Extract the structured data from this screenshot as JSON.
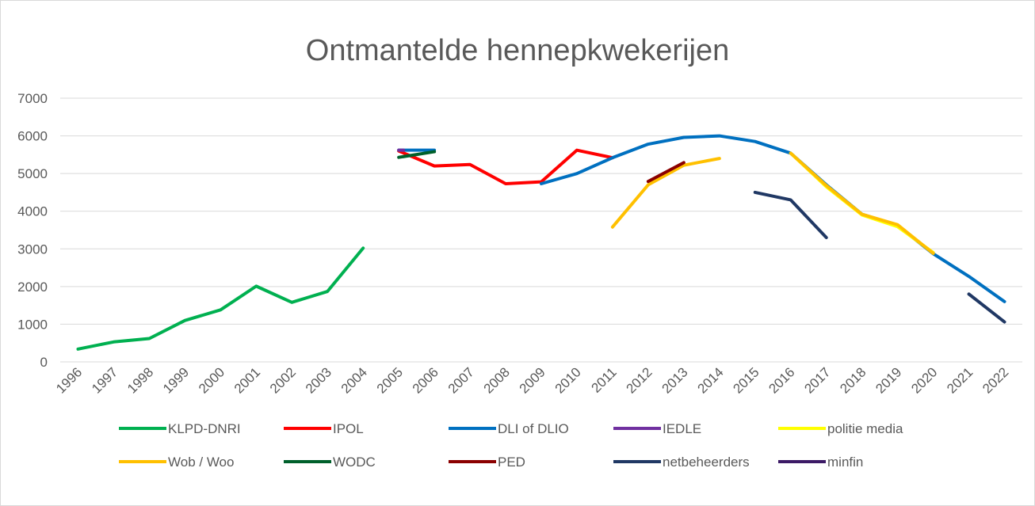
{
  "chart_data": {
    "type": "line",
    "title": "Ontmantelde hennepkwekerijen",
    "categories": [
      "1996",
      "1997",
      "1998",
      "1999",
      "2000",
      "2001",
      "2002",
      "2003",
      "2004",
      "2005",
      "2006",
      "2007",
      "2008",
      "2009",
      "2010",
      "2011",
      "2012",
      "2013",
      "2014",
      "2015",
      "2016",
      "2017",
      "2018",
      "2019",
      "2020",
      "2021",
      "2022"
    ],
    "ylim": [
      0,
      7000
    ],
    "yticks": [
      0,
      1000,
      2000,
      3000,
      4000,
      5000,
      6000,
      7000
    ],
    "grid": true,
    "legend": "bottom",
    "series": [
      {
        "name": "KLPD-DNRI",
        "color": "#00b050",
        "values": [
          340,
          530,
          620,
          1100,
          1380,
          2010,
          1580,
          1870,
          3020,
          null,
          null,
          null,
          null,
          null,
          null,
          null,
          null,
          null,
          null,
          null,
          null,
          null,
          null,
          null,
          null,
          null,
          null
        ]
      },
      {
        "name": "IPOL",
        "color": "#ff0000",
        "values": [
          null,
          null,
          null,
          null,
          null,
          null,
          null,
          null,
          null,
          5600,
          5200,
          5240,
          4730,
          4780,
          5620,
          5420,
          null,
          null,
          null,
          null,
          null,
          null,
          null,
          null,
          null,
          null,
          null
        ]
      },
      {
        "name": "DLI of DLIO",
        "color": "#0070c0",
        "values": [
          null,
          null,
          null,
          null,
          null,
          null,
          null,
          null,
          null,
          5620,
          5620,
          null,
          null,
          4730,
          5000,
          5420,
          5780,
          5960,
          6000,
          5850,
          5540,
          4700,
          3920,
          3620,
          2870,
          2270,
          1600
        ]
      },
      {
        "name": "IEDLE",
        "color": "#7030a0",
        "values": [
          null,
          null,
          null,
          null,
          null,
          null,
          null,
          null,
          null,
          5620,
          null,
          null,
          null,
          null,
          null,
          null,
          null,
          null,
          null,
          null,
          null,
          null,
          null,
          null,
          null,
          null,
          null
        ]
      },
      {
        "name": "politie media",
        "color": "#ffff00",
        "values": [
          null,
          null,
          null,
          null,
          null,
          null,
          null,
          null,
          null,
          null,
          null,
          null,
          null,
          null,
          null,
          null,
          null,
          null,
          null,
          null,
          5540,
          4650,
          3900,
          3590,
          2900,
          null,
          null
        ]
      },
      {
        "name": "Wob / Woo",
        "color": "#ffc000",
        "values": [
          null,
          null,
          null,
          null,
          null,
          null,
          null,
          null,
          null,
          null,
          null,
          null,
          null,
          null,
          null,
          3580,
          4700,
          5220,
          5400,
          null,
          5540,
          4680,
          3920,
          3640,
          2880,
          null,
          null
        ]
      },
      {
        "name": "WODC",
        "color": "#00602b",
        "values": [
          null,
          null,
          null,
          null,
          null,
          null,
          null,
          null,
          null,
          5430,
          5580,
          null,
          null,
          null,
          null,
          null,
          null,
          null,
          null,
          null,
          null,
          null,
          null,
          null,
          null,
          null,
          null
        ]
      },
      {
        "name": "PED",
        "color": "#8b0000",
        "values": [
          null,
          null,
          null,
          null,
          null,
          null,
          null,
          null,
          null,
          null,
          null,
          null,
          null,
          null,
          null,
          null,
          4790,
          5290,
          null,
          null,
          null,
          null,
          null,
          null,
          null,
          null,
          null
        ]
      },
      {
        "name": "netbeheerders",
        "color": "#203864",
        "values": [
          null,
          null,
          null,
          null,
          null,
          null,
          null,
          null,
          null,
          null,
          null,
          null,
          null,
          null,
          null,
          null,
          null,
          null,
          null,
          4500,
          4300,
          3300,
          null,
          null,
          null,
          1800,
          1060
        ]
      },
      {
        "name": "minfin",
        "color": "#3c1a66",
        "values": [
          null,
          null,
          null,
          null,
          null,
          null,
          null,
          null,
          null,
          null,
          null,
          null,
          null,
          null,
          null,
          null,
          null,
          null,
          null,
          null,
          null,
          null,
          null,
          null,
          null,
          null,
          null
        ]
      }
    ]
  }
}
